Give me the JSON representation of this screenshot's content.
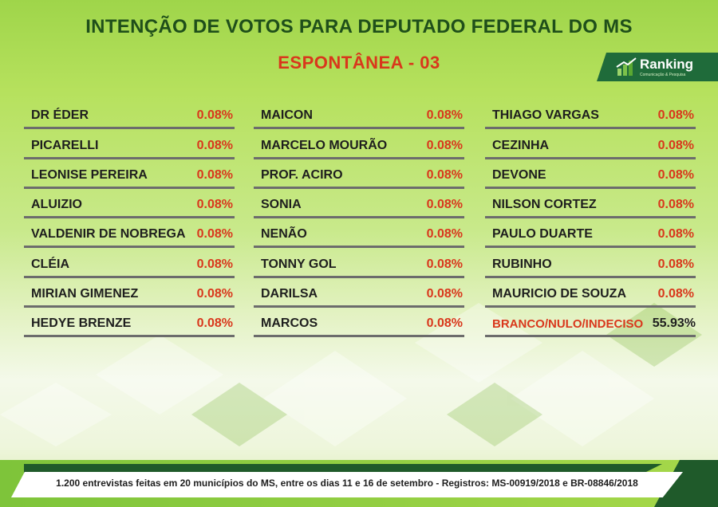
{
  "header": {
    "title": "INTENÇÃO DE VOTOS PARA DEPUTADO FEDERAL DO MS",
    "subtitle": "ESPONTÂNEA - 03"
  },
  "logo": {
    "name": "Ranking",
    "tagline": "Comunicação & Pesquisa"
  },
  "columns": [
    [
      {
        "name": "DR ÉDER",
        "value": "0.08%"
      },
      {
        "name": "PICARELLI",
        "value": "0.08%"
      },
      {
        "name": "LEONISE PEREIRA",
        "value": "0.08%"
      },
      {
        "name": "ALUIZIO",
        "value": "0.08%"
      },
      {
        "name": "VALDENIR DE NOBREGA",
        "value": "0.08%"
      },
      {
        "name": "CLÉIA",
        "value": "0.08%"
      },
      {
        "name": "MIRIAN GIMENEZ",
        "value": "0.08%"
      },
      {
        "name": "HEDYE BRENZE",
        "value": "0.08%"
      }
    ],
    [
      {
        "name": "MAICON",
        "value": "0.08%"
      },
      {
        "name": "MARCELO MOURÃO",
        "value": "0.08%"
      },
      {
        "name": "PROF. ACIRO",
        "value": "0.08%"
      },
      {
        "name": "SONIA",
        "value": "0.08%"
      },
      {
        "name": "NENÃO",
        "value": "0.08%"
      },
      {
        "name": "TONNY GOL",
        "value": "0.08%"
      },
      {
        "name": "DARILSA",
        "value": "0.08%"
      },
      {
        "name": "MARCOS",
        "value": "0.08%"
      }
    ],
    [
      {
        "name": "THIAGO VARGAS",
        "value": "0.08%"
      },
      {
        "name": "CEZINHA",
        "value": "0.08%"
      },
      {
        "name": "DEVONE",
        "value": "0.08%"
      },
      {
        "name": "NILSON CORTEZ",
        "value": "0.08%"
      },
      {
        "name": "PAULO DUARTE",
        "value": "0.08%"
      },
      {
        "name": "RUBINHO",
        "value": "0.08%"
      },
      {
        "name": "MAURICIO DE SOUZA",
        "value": "0.08%"
      },
      {
        "name": "BRANCO/NULO/INDECISO",
        "value": "55.93%"
      }
    ]
  ],
  "footer": {
    "text": "1.200 entrevistas feitas em 20 municípios do MS, entre os dias 11 e 16 de setembro - Registros:  MS-00919/2018 e BR-08846/2018"
  },
  "colors": {
    "title": "#1f4f1a",
    "accent_red": "#d9371c",
    "logo_bg": "#1f6b3a",
    "background_green": "#9fd54a"
  }
}
